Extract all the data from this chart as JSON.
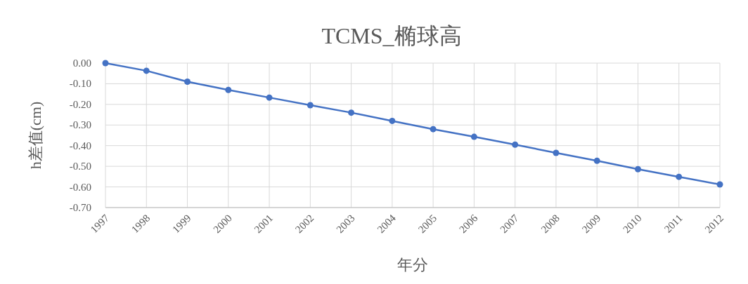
{
  "chart_data": {
    "type": "line",
    "title": "TCMS_椭球高",
    "xlabel": "年分",
    "ylabel": "h差值(cm)",
    "categories": [
      "1997",
      "1998",
      "1999",
      "2000",
      "2001",
      "2002",
      "2003",
      "2004",
      "2005",
      "2006",
      "2007",
      "2008",
      "2009",
      "2010",
      "2011",
      "2012"
    ],
    "series": [
      {
        "color": "#4472c4",
        "values": [
          0,
          -0.037,
          -0.09,
          -0.13,
          -0.167,
          -0.204,
          -0.24,
          -0.28,
          -0.32,
          -0.357,
          -0.395,
          -0.435,
          -0.473,
          -0.514,
          -0.551,
          -0.588
        ]
      }
    ],
    "ylim": [
      -0.7,
      0
    ],
    "yticks": [
      {
        "value": 0,
        "label": "0.00"
      },
      {
        "value": -0.1,
        "label": "-0.10"
      },
      {
        "value": -0.2,
        "label": "-0.20"
      },
      {
        "value": -0.3,
        "label": "-0.30"
      },
      {
        "value": -0.4,
        "label": "-0.40"
      },
      {
        "value": -0.5,
        "label": "-0.50"
      },
      {
        "value": -0.6,
        "label": "-0.60"
      },
      {
        "value": -0.7,
        "label": "-0.70"
      }
    ],
    "grid": true,
    "marker": "circle",
    "line_style": "solid"
  }
}
